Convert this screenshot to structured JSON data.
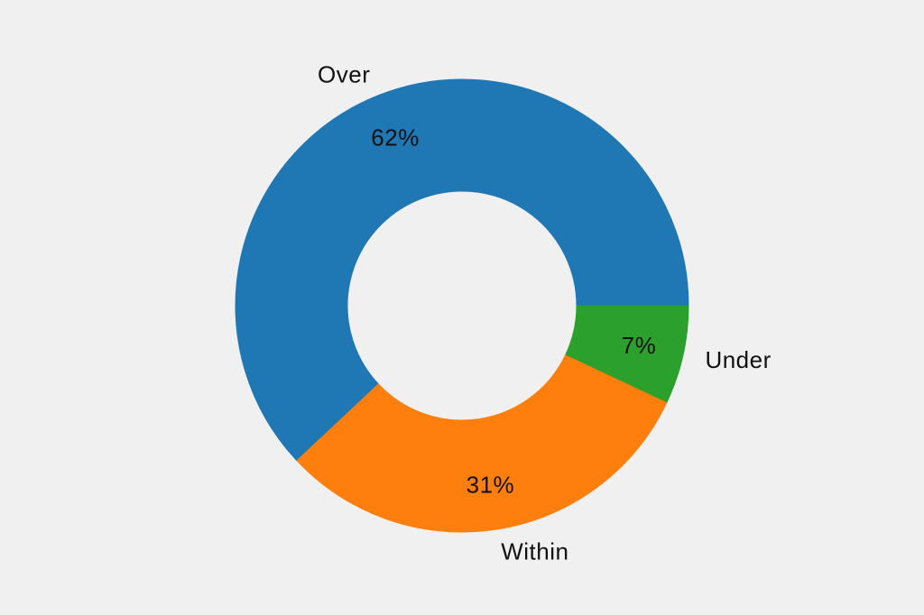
{
  "canvas": {
    "background_color": "#f0f0f0",
    "text_color": "#111111"
  },
  "chart_data": {
    "type": "pie",
    "subtype": "donut",
    "title": "",
    "categories": [
      "Over",
      "Within",
      "Under"
    ],
    "values": [
      62,
      31,
      7
    ],
    "value_labels": [
      "62%",
      "31%",
      "7%"
    ],
    "colors": [
      "#1f77b4",
      "#ff7f0e",
      "#2ca02c"
    ],
    "start_angle_deg": 0,
    "direction": "counterclockwise",
    "donut_hole_ratio": 0.506,
    "pct_label_radius_ratio": 0.8,
    "category_label_radius_ratio": 1.1,
    "legend_position": "none",
    "gridlines": false
  }
}
